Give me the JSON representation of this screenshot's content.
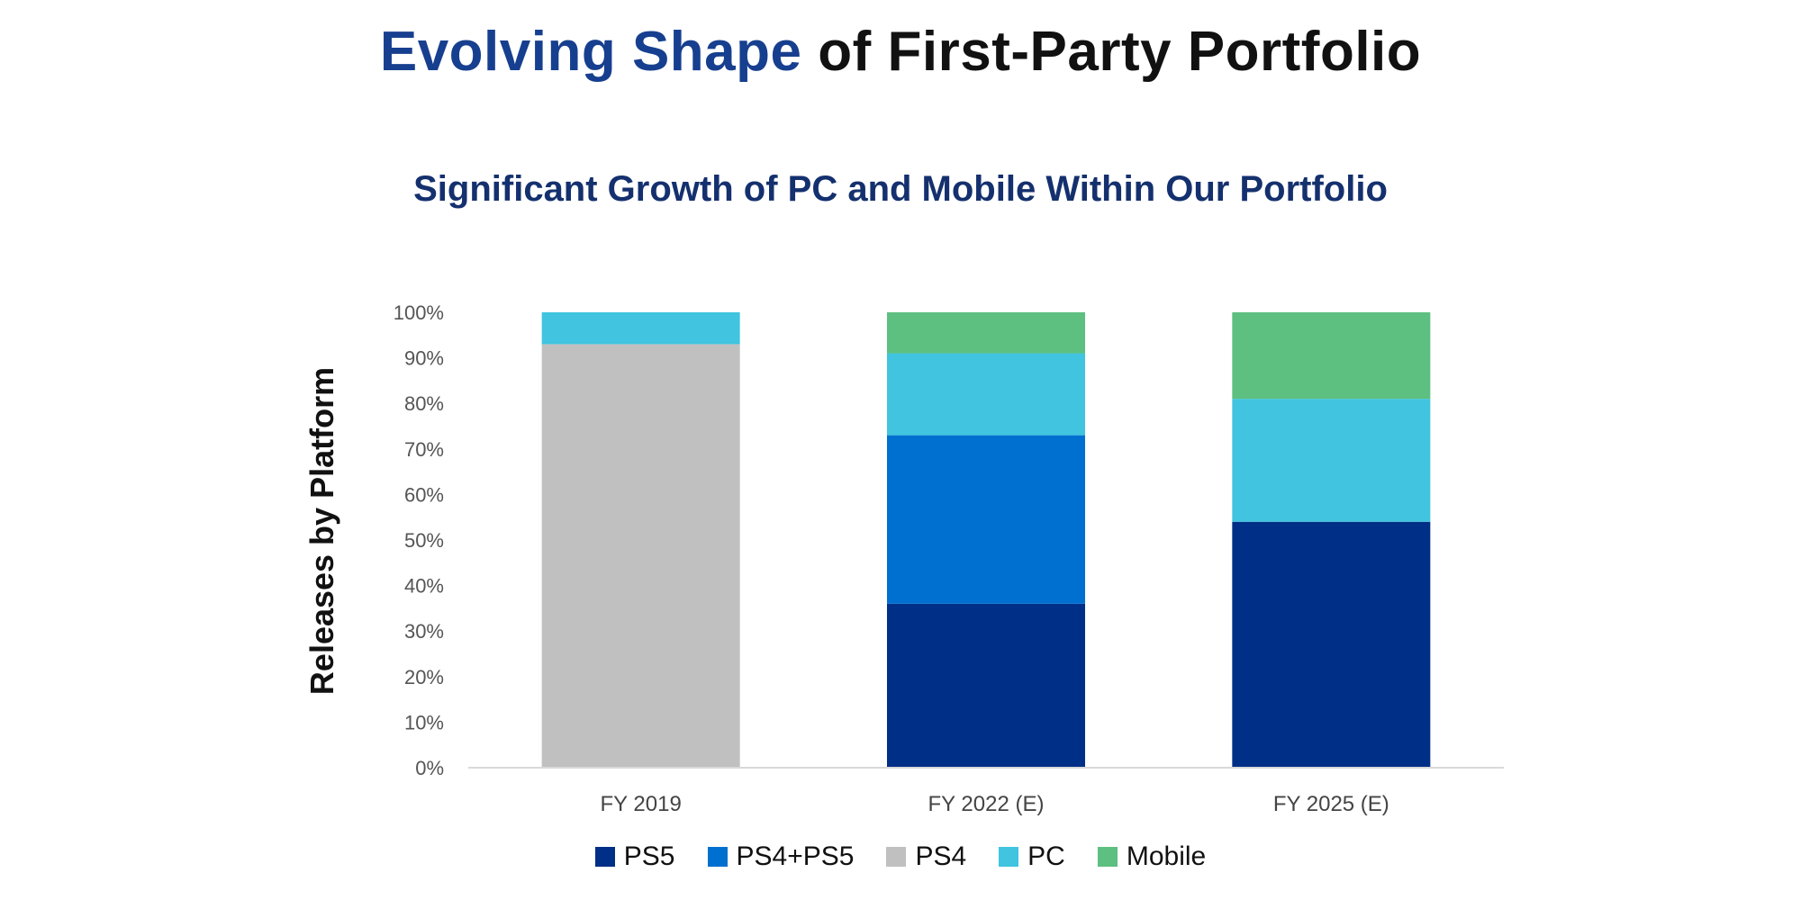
{
  "header": {
    "title_accent": "Evolving Shape",
    "title_rest": " of First-Party Portfolio"
  },
  "colors": {
    "title_accent": "#173f8f",
    "PS5": "#002f87",
    "PS4+PS5": "#0070d0",
    "PS4": "#c0c0c0",
    "PC": "#40c4df",
    "Mobile": "#5dbf80"
  },
  "chart_data": {
    "type": "bar",
    "stacked": true,
    "title": "Significant Growth of PC and Mobile Within Our Portfolio",
    "ylabel": "Releases by Platform",
    "xlabel": "",
    "ylim": [
      0,
      100
    ],
    "yticks": [
      "0%",
      "10%",
      "20%",
      "30%",
      "40%",
      "50%",
      "60%",
      "70%",
      "80%",
      "90%",
      "100%"
    ],
    "categories": [
      "FY 2019",
      "FY 2022 (E)",
      "FY 2025 (E)"
    ],
    "series": [
      {
        "name": "PS5",
        "values": [
          0,
          36,
          54
        ]
      },
      {
        "name": "PS4+PS5",
        "values": [
          0,
          37,
          0
        ]
      },
      {
        "name": "PS4",
        "values": [
          93,
          0,
          0
        ]
      },
      {
        "name": "PC",
        "values": [
          7,
          18,
          27
        ]
      },
      {
        "name": "Mobile",
        "values": [
          0,
          9,
          19
        ]
      }
    ],
    "grid": false,
    "legend": "bottom"
  }
}
